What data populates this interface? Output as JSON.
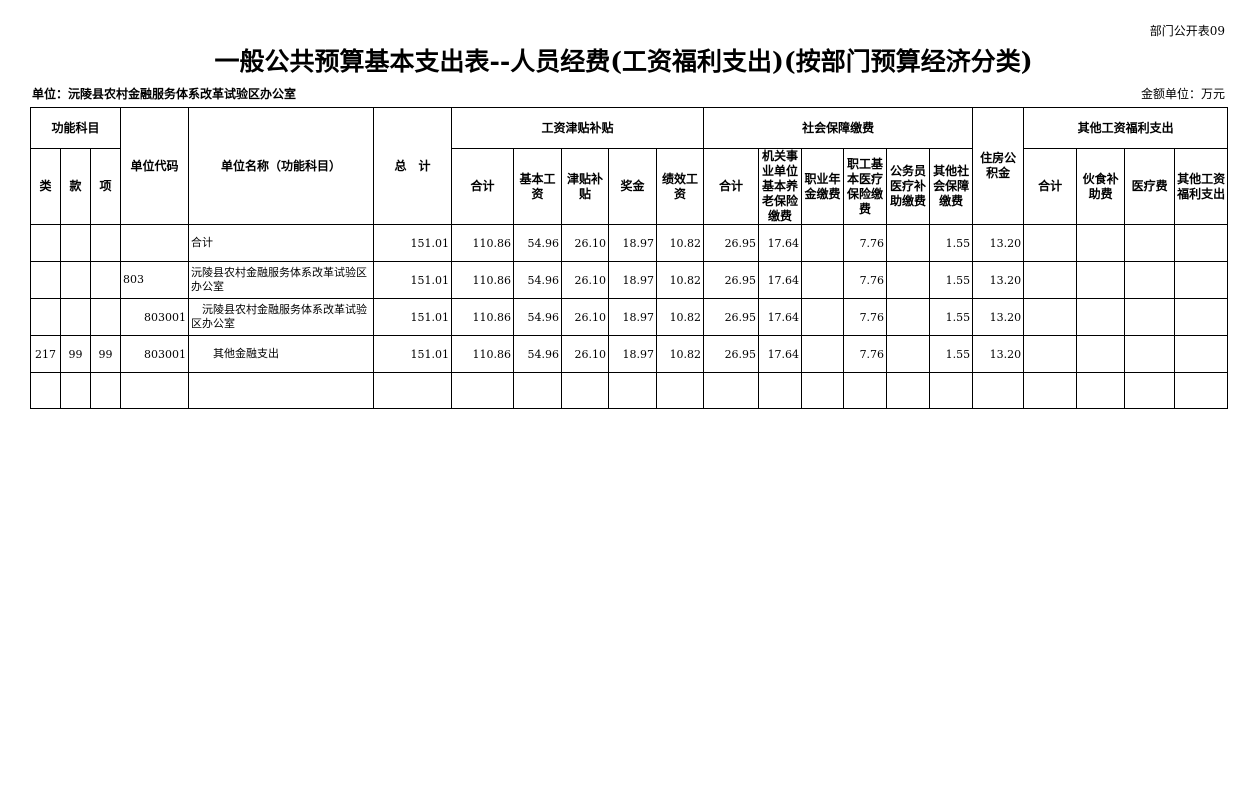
{
  "form_no": "部门公开表09",
  "title": "一般公共预算基本支出表--人员经费(工资福利支出)(按部门预算经济分类)",
  "unit_label": "单位：沅陵县农村金融服务体系改革试验区办公室",
  "money_unit": "金额单位：万元",
  "headers": {
    "func": "功能科目",
    "lei": "类",
    "kuan": "款",
    "xiang": "项",
    "code": "单位代码",
    "name": "单位名称（功能科目）",
    "total": "总　计",
    "wage": "工资津贴补贴",
    "social": "社会保障缴费",
    "housing": "住房公积金",
    "other": "其他工资福利支出",
    "wage_cols": [
      "合计",
      "基本工资",
      "津贴补贴",
      "奖金",
      "绩效工资"
    ],
    "social_cols": [
      "合计",
      "机关事业单位基本养老保险缴费",
      "职业年金缴费",
      "职工基本医疗保险缴费",
      "公务员医疗补助缴费",
      "其他社会保障缴费"
    ],
    "other_cols": [
      "合计",
      "伙食补助费",
      "医疗费",
      "其他工资福利支出"
    ]
  },
  "rows": [
    {
      "lei": "",
      "kuan": "",
      "xiang": "",
      "code": "",
      "name": "合计",
      "values": [
        "151.01",
        "110.86",
        "54.96",
        "26.10",
        "18.97",
        "10.82",
        "26.95",
        "17.64",
        "",
        "7.76",
        "",
        "1.55",
        "13.20",
        "",
        "",
        "",
        ""
      ]
    },
    {
      "lei": "",
      "kuan": "",
      "xiang": "",
      "code": "803",
      "name": "沅陵县农村金融服务体系改革试验区办公室",
      "values": [
        "151.01",
        "110.86",
        "54.96",
        "26.10",
        "18.97",
        "10.82",
        "26.95",
        "17.64",
        "",
        "7.76",
        "",
        "1.55",
        "13.20",
        "",
        "",
        "",
        ""
      ]
    },
    {
      "lei": "",
      "kuan": "",
      "xiang": "",
      "code": "803001",
      "name": "　沅陵县农村金融服务体系改革试验区办公室",
      "values": [
        "151.01",
        "110.86",
        "54.96",
        "26.10",
        "18.97",
        "10.82",
        "26.95",
        "17.64",
        "",
        "7.76",
        "",
        "1.55",
        "13.20",
        "",
        "",
        "",
        ""
      ]
    },
    {
      "lei": "217",
      "kuan": "99",
      "xiang": "99",
      "code": "803001",
      "name": "　　其他金融支出",
      "values": [
        "151.01",
        "110.86",
        "54.96",
        "26.10",
        "18.97",
        "10.82",
        "26.95",
        "17.64",
        "",
        "7.76",
        "",
        "1.55",
        "13.20",
        "",
        "",
        "",
        ""
      ]
    },
    {
      "lei": "",
      "kuan": "",
      "xiang": "",
      "code": "",
      "name": "",
      "values": [
        "",
        "",
        "",
        "",
        "",
        "",
        "",
        "",
        "",
        "",
        "",
        "",
        "",
        "",
        "",
        "",
        ""
      ]
    }
  ]
}
